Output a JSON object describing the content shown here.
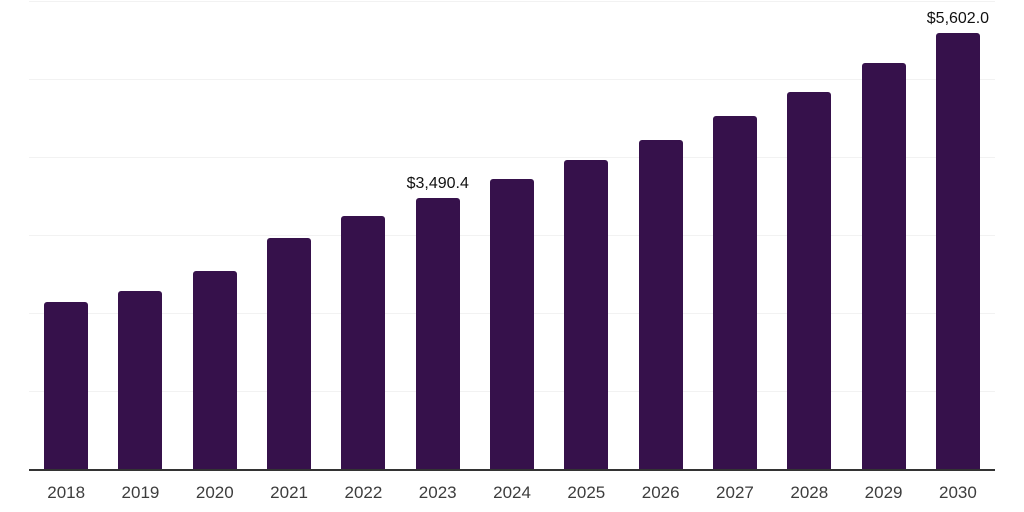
{
  "chart_data": {
    "type": "bar",
    "title": "",
    "xlabel": "",
    "ylabel": "",
    "categories": [
      "2018",
      "2019",
      "2020",
      "2021",
      "2022",
      "2023",
      "2024",
      "2025",
      "2026",
      "2027",
      "2028",
      "2029",
      "2030"
    ],
    "values": [
      2160,
      2300,
      2555,
      2980,
      3260,
      3490.4,
      3730,
      3970,
      4235,
      4540,
      4850,
      5220,
      5602
    ],
    "value_labels": [
      null,
      null,
      null,
      null,
      null,
      "$3,490.4",
      null,
      null,
      null,
      null,
      null,
      null,
      "$5,602.0"
    ],
    "ylim": [
      0,
      6000
    ],
    "gridline_interval": 1000,
    "grid": "horizontal",
    "legend": "none",
    "bar_color": "#36114B"
  },
  "colors": {
    "bar": "#36114B",
    "gridline": "#F2F2F2",
    "axis": "#333333",
    "tick_label": "#3D3D3D",
    "value_label": "#111111",
    "background": "#FFFFFF"
  }
}
